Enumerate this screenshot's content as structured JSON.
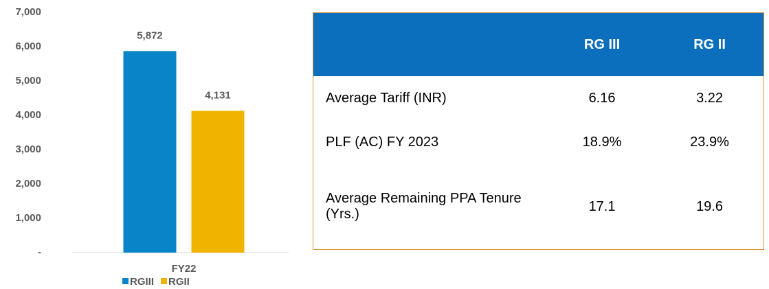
{
  "chart_data": {
    "type": "bar",
    "categories": [
      "FY22"
    ],
    "series": [
      {
        "name": "RGIII",
        "color": "#0a84c8",
        "values": [
          5872
        ],
        "value_labels": [
          "5,872"
        ]
      },
      {
        "name": "RGII",
        "color": "#f0b400",
        "values": [
          4131
        ],
        "value_labels": [
          "4,131"
        ]
      }
    ],
    "ylim": [
      0,
      7000
    ],
    "yticks": [
      {
        "value": 0,
        "label": "-"
      },
      {
        "value": 1000,
        "label": "1,000"
      },
      {
        "value": 2000,
        "label": "2,000"
      },
      {
        "value": 3000,
        "label": "3,000"
      },
      {
        "value": 4000,
        "label": "4,000"
      },
      {
        "value": 5000,
        "label": "5,000"
      },
      {
        "value": 6000,
        "label": "6,000"
      },
      {
        "value": 7000,
        "label": "7,000"
      }
    ],
    "grid": false
  },
  "table": {
    "columns": [
      "RG III",
      "RG II"
    ],
    "rows": [
      {
        "label": "Average Tariff (INR)",
        "values": [
          "6.16",
          "3.22"
        ]
      },
      {
        "label": "PLF (AC) FY 2023",
        "values": [
          "18.9%",
          "23.9%"
        ]
      },
      {
        "label": "Average Remaining PPA Tenure (Yrs.)",
        "values": [
          "17.1",
          "19.6"
        ]
      }
    ]
  }
}
